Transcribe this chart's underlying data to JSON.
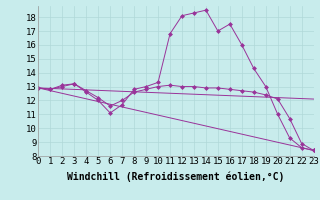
{
  "background_color": "#c8ecec",
  "grid_color": "#b0d8d8",
  "line_color": "#993399",
  "markersize": 2.5,
  "series1_x": [
    0,
    1,
    2,
    3,
    4,
    5,
    6,
    7,
    8,
    9,
    10,
    11,
    12,
    13,
    14,
    15,
    16,
    17,
    18,
    19,
    20,
    21,
    22,
    23
  ],
  "series1_y": [
    12.9,
    12.8,
    13.1,
    13.2,
    12.6,
    12.0,
    11.1,
    11.7,
    12.8,
    13.0,
    13.3,
    16.8,
    18.1,
    18.3,
    18.5,
    17.0,
    17.5,
    16.0,
    14.3,
    13.0,
    11.0,
    9.3,
    8.6,
    8.4
  ],
  "series2_x": [
    0,
    1,
    2,
    3,
    4,
    5,
    6,
    7,
    8,
    9,
    10,
    11,
    12,
    13,
    14,
    15,
    16,
    17,
    18,
    19,
    20,
    21,
    22,
    23
  ],
  "series2_y": [
    12.9,
    12.8,
    13.0,
    13.2,
    12.7,
    12.2,
    11.6,
    12.0,
    12.6,
    12.8,
    13.0,
    13.1,
    13.0,
    13.0,
    12.9,
    12.9,
    12.8,
    12.7,
    12.6,
    12.4,
    12.1,
    10.7,
    8.9,
    8.4
  ],
  "series3_x": [
    0,
    23
  ],
  "series3_y": [
    12.9,
    12.1
  ],
  "series4_x": [
    0,
    23
  ],
  "series4_y": [
    12.9,
    8.4
  ],
  "xlim": [
    0,
    23
  ],
  "ylim": [
    8,
    18.8
  ],
  "yticks": [
    8,
    9,
    10,
    11,
    12,
    13,
    14,
    15,
    16,
    17,
    18
  ],
  "xticks": [
    0,
    1,
    2,
    3,
    4,
    5,
    6,
    7,
    8,
    9,
    10,
    11,
    12,
    13,
    14,
    15,
    16,
    17,
    18,
    19,
    20,
    21,
    22,
    23
  ],
  "xlabel": "Windchill (Refroidissement éolien,°C)",
  "xlabel_fontsize": 7,
  "tick_fontsize": 6.5
}
